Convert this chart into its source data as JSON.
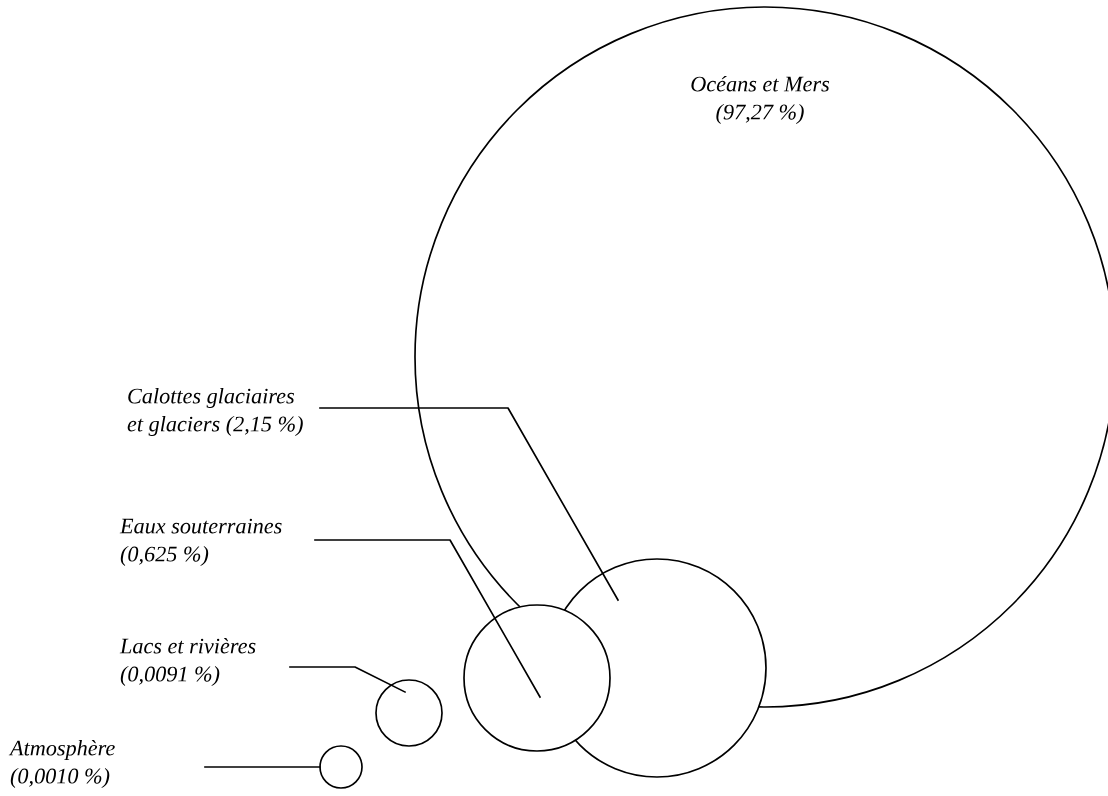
{
  "chart_data": {
    "type": "other",
    "categories": [
      "Océans et Mers",
      "Calottes glaciaires et glaciers",
      "Eaux souterraines",
      "Lacs et rivières",
      "Atmosphère"
    ],
    "values": [
      97.27,
      2.15,
      0.625,
      0.0091,
      0.001
    ],
    "value_labels": [
      "(97,27 %)",
      "(2,15 %)",
      "(0,625 %)",
      "(0,0091 %)",
      "(0,0010 %)"
    ]
  }
}
